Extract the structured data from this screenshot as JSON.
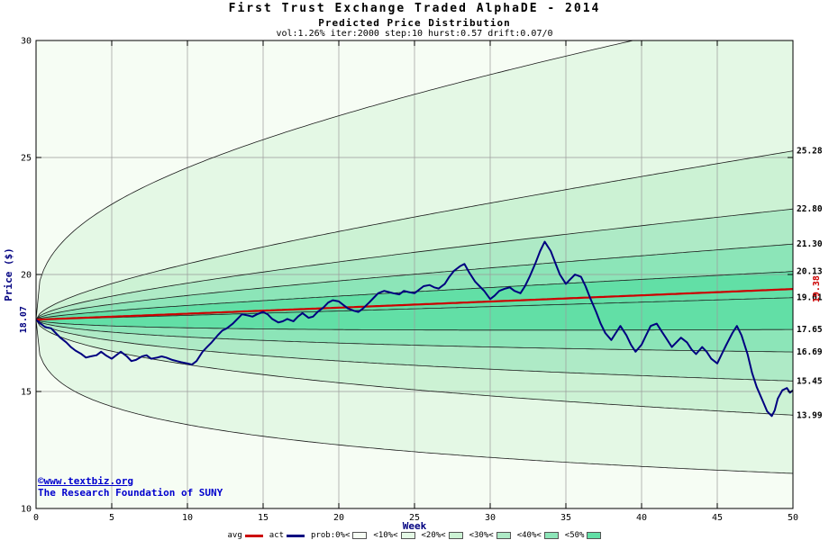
{
  "header": {
    "title": "First Trust Exchange Traded AlphaDE - 2014",
    "subtitle": "Predicted Price Distribution",
    "params": "vol:1.26% iter:2000 step:10 hurst:0.57 drift:0.07/0"
  },
  "footer": {
    "copyright_line1": "©www.textbiz.org",
    "copyright_line2": "The Research Foundation of SUNY"
  },
  "legend": {
    "items": [
      {
        "label": "avg",
        "type": "line",
        "color": "#cc0000"
      },
      {
        "label": "act",
        "type": "line",
        "color": "#000080"
      },
      {
        "label": "prob:0%<",
        "type": "swatch",
        "color": "#f6fdf4"
      },
      {
        "label": "<10%<",
        "type": "swatch",
        "color": "#e4f8e5"
      },
      {
        "label": "<20%<",
        "type": "swatch",
        "color": "#ccf2d4"
      },
      {
        "label": "<30%<",
        "type": "swatch",
        "color": "#aeeac6"
      },
      {
        "label": "<40%<",
        "type": "swatch",
        "color": "#8ce5b8"
      },
      {
        "label": "<50%",
        "type": "swatch",
        "color": "#62dfa6"
      }
    ]
  },
  "chart_data": {
    "type": "area",
    "title": "First Trust Exchange Traded AlphaDE - 2014",
    "subtitle": "Predicted Price Distribution",
    "annotation": "vol:1.26% iter:2000 step:10 hurst:0.57 drift:0.07/0",
    "xlabel": "Week",
    "ylabel": "Price ($)",
    "xlim": [
      0,
      50
    ],
    "ylim": [
      10,
      30
    ],
    "xticks": [
      0,
      5,
      10,
      15,
      20,
      25,
      30,
      35,
      40,
      45,
      50
    ],
    "yticks": [
      10,
      15,
      20,
      25,
      30
    ],
    "grid": true,
    "legend_position": "bottom",
    "start_price": 18.07,
    "start_label": "18.07",
    "avg_end": 19.38,
    "avg_end_label": "19.38",
    "avg_color": "#cc0000",
    "act_color": "#000080",
    "hurst": 0.57,
    "percentile_ends": [
      25.28,
      22.8,
      21.3,
      20.13,
      19.01,
      17.65,
      16.69,
      15.45,
      13.99
    ],
    "right_labels": [
      "25.28",
      "22.80",
      "21.30",
      "20.13",
      "19.01",
      "17.65",
      "16.69",
      "15.45",
      "13.99"
    ],
    "envelope_ends": [
      31.5,
      11.5
    ],
    "envelope_exponent": 0.33,
    "band_colors": [
      "#f6fdf4",
      "#e4f8e5",
      "#ccf2d4",
      "#aeeac6",
      "#8ce5b8",
      "#62dfa6"
    ],
    "act_series": {
      "name": "act",
      "points": [
        [
          0,
          18.07
        ],
        [
          0.3,
          17.9
        ],
        [
          0.6,
          17.75
        ],
        [
          1,
          17.7
        ],
        [
          1.3,
          17.5
        ],
        [
          1.6,
          17.3
        ],
        [
          2,
          17.1
        ],
        [
          2.3,
          16.9
        ],
        [
          2.6,
          16.75
        ],
        [
          3,
          16.6
        ],
        [
          3.3,
          16.45
        ],
        [
          3.6,
          16.5
        ],
        [
          4,
          16.55
        ],
        [
          4.3,
          16.7
        ],
        [
          4.6,
          16.55
        ],
        [
          5,
          16.4
        ],
        [
          5.3,
          16.55
        ],
        [
          5.6,
          16.7
        ],
        [
          6,
          16.5
        ],
        [
          6.3,
          16.3
        ],
        [
          6.6,
          16.35
        ],
        [
          7,
          16.5
        ],
        [
          7.3,
          16.55
        ],
        [
          7.6,
          16.4
        ],
        [
          8,
          16.45
        ],
        [
          8.3,
          16.5
        ],
        [
          8.6,
          16.45
        ],
        [
          9,
          16.35
        ],
        [
          9.3,
          16.3
        ],
        [
          9.6,
          16.25
        ],
        [
          10,
          16.2
        ],
        [
          10.3,
          16.15
        ],
        [
          10.6,
          16.3
        ],
        [
          11,
          16.7
        ],
        [
          11.3,
          16.9
        ],
        [
          11.6,
          17.1
        ],
        [
          12,
          17.4
        ],
        [
          12.3,
          17.6
        ],
        [
          12.6,
          17.7
        ],
        [
          13,
          17.9
        ],
        [
          13.3,
          18.1
        ],
        [
          13.6,
          18.3
        ],
        [
          14,
          18.25
        ],
        [
          14.3,
          18.2
        ],
        [
          14.6,
          18.3
        ],
        [
          15,
          18.4
        ],
        [
          15.3,
          18.3
        ],
        [
          15.6,
          18.1
        ],
        [
          16,
          17.95
        ],
        [
          16.3,
          18.0
        ],
        [
          16.6,
          18.1
        ],
        [
          17,
          18.0
        ],
        [
          17.3,
          18.2
        ],
        [
          17.6,
          18.35
        ],
        [
          18,
          18.15
        ],
        [
          18.3,
          18.2
        ],
        [
          18.6,
          18.4
        ],
        [
          19,
          18.6
        ],
        [
          19.3,
          18.8
        ],
        [
          19.6,
          18.9
        ],
        [
          20,
          18.85
        ],
        [
          20.3,
          18.7
        ],
        [
          20.6,
          18.55
        ],
        [
          21,
          18.45
        ],
        [
          21.3,
          18.4
        ],
        [
          21.6,
          18.55
        ],
        [
          22,
          18.8
        ],
        [
          22.3,
          19.0
        ],
        [
          22.6,
          19.2
        ],
        [
          23,
          19.3
        ],
        [
          23.3,
          19.25
        ],
        [
          23.6,
          19.2
        ],
        [
          24,
          19.15
        ],
        [
          24.3,
          19.3
        ],
        [
          24.6,
          19.25
        ],
        [
          25,
          19.2
        ],
        [
          25.3,
          19.35
        ],
        [
          25.6,
          19.5
        ],
        [
          26,
          19.55
        ],
        [
          26.3,
          19.45
        ],
        [
          26.6,
          19.4
        ],
        [
          27,
          19.6
        ],
        [
          27.3,
          19.9
        ],
        [
          27.6,
          20.15
        ],
        [
          28,
          20.35
        ],
        [
          28.3,
          20.45
        ],
        [
          28.6,
          20.1
        ],
        [
          29,
          19.7
        ],
        [
          29.3,
          19.5
        ],
        [
          29.6,
          19.3
        ],
        [
          30,
          18.95
        ],
        [
          30.3,
          19.1
        ],
        [
          30.6,
          19.3
        ],
        [
          31,
          19.4
        ],
        [
          31.3,
          19.45
        ],
        [
          31.6,
          19.3
        ],
        [
          32,
          19.2
        ],
        [
          32.3,
          19.5
        ],
        [
          32.6,
          19.9
        ],
        [
          33,
          20.5
        ],
        [
          33.3,
          21.0
        ],
        [
          33.6,
          21.4
        ],
        [
          34,
          21.0
        ],
        [
          34.3,
          20.5
        ],
        [
          34.6,
          20.0
        ],
        [
          35,
          19.6
        ],
        [
          35.3,
          19.8
        ],
        [
          35.6,
          20.0
        ],
        [
          36,
          19.9
        ],
        [
          36.3,
          19.5
        ],
        [
          36.6,
          19.0
        ],
        [
          37,
          18.4
        ],
        [
          37.3,
          17.9
        ],
        [
          37.6,
          17.5
        ],
        [
          38,
          17.2
        ],
        [
          38.3,
          17.5
        ],
        [
          38.6,
          17.8
        ],
        [
          39,
          17.4
        ],
        [
          39.3,
          17.0
        ],
        [
          39.6,
          16.7
        ],
        [
          40,
          17.0
        ],
        [
          40.3,
          17.4
        ],
        [
          40.6,
          17.8
        ],
        [
          41,
          17.9
        ],
        [
          41.3,
          17.6
        ],
        [
          41.6,
          17.3
        ],
        [
          42,
          16.9
        ],
        [
          42.3,
          17.1
        ],
        [
          42.6,
          17.3
        ],
        [
          43,
          17.1
        ],
        [
          43.3,
          16.8
        ],
        [
          43.6,
          16.6
        ],
        [
          44,
          16.9
        ],
        [
          44.3,
          16.7
        ],
        [
          44.6,
          16.4
        ],
        [
          45,
          16.2
        ],
        [
          45.3,
          16.6
        ],
        [
          45.6,
          17.0
        ],
        [
          46,
          17.5
        ],
        [
          46.3,
          17.8
        ],
        [
          46.6,
          17.4
        ],
        [
          47,
          16.6
        ],
        [
          47.3,
          15.8
        ],
        [
          47.6,
          15.2
        ],
        [
          48,
          14.6
        ],
        [
          48.3,
          14.15
        ],
        [
          48.6,
          13.95
        ],
        [
          48.8,
          14.2
        ],
        [
          49,
          14.7
        ],
        [
          49.3,
          15.05
        ],
        [
          49.6,
          15.15
        ],
        [
          49.8,
          14.95
        ],
        [
          50,
          15.05
        ]
      ]
    }
  }
}
